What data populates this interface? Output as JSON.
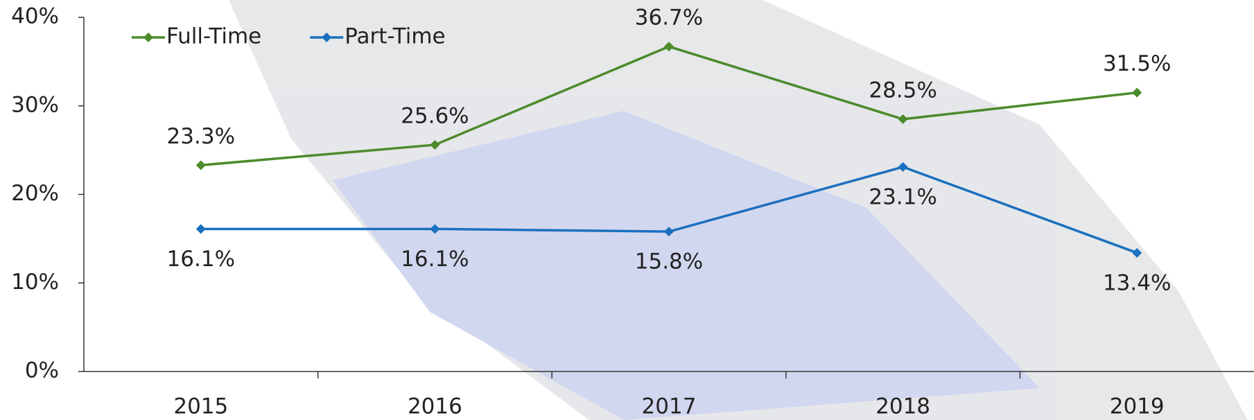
{
  "chart_data": {
    "type": "line",
    "categories": [
      "2015",
      "2016",
      "2017",
      "2018",
      "2019"
    ],
    "series": [
      {
        "name": "Full-Time",
        "color": "#4b8b2b",
        "values": [
          23.3,
          25.6,
          36.7,
          28.5,
          31.5
        ],
        "value_labels": [
          "23.3%",
          "25.6%",
          "36.7%",
          "28.5%",
          "31.5%"
        ]
      },
      {
        "name": "Part-Time",
        "color": "#1b70bf",
        "values": [
          16.1,
          16.1,
          15.8,
          23.1,
          13.4
        ],
        "value_labels": [
          "16.1%",
          "16.1%",
          "15.8%",
          "23.1%",
          "13.4%"
        ]
      }
    ],
    "ylim": [
      0,
      40
    ],
    "yticks": [
      {
        "value": 0,
        "label": "0%"
      },
      {
        "value": 10,
        "label": "10%"
      },
      {
        "value": 20,
        "label": "20%"
      },
      {
        "value": 30,
        "label": "30%"
      },
      {
        "value": 40,
        "label": "40%"
      }
    ],
    "legend": "top-left"
  }
}
